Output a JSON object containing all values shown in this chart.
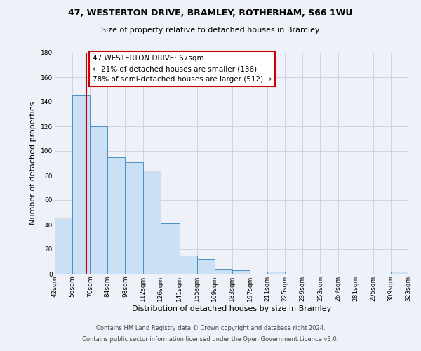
{
  "title": "47, WESTERTON DRIVE, BRAMLEY, ROTHERHAM, S66 1WU",
  "subtitle": "Size of property relative to detached houses in Bramley",
  "xlabel": "Distribution of detached houses by size in Bramley",
  "ylabel": "Number of detached properties",
  "bin_edges": [
    42,
    56,
    70,
    84,
    98,
    112,
    126,
    141,
    155,
    169,
    183,
    197,
    211,
    225,
    239,
    253,
    267,
    281,
    295,
    309,
    323
  ],
  "bin_labels": [
    "42sqm",
    "56sqm",
    "70sqm",
    "84sqm",
    "98sqm",
    "112sqm",
    "126sqm",
    "141sqm",
    "155sqm",
    "169sqm",
    "183sqm",
    "197sqm",
    "211sqm",
    "225sqm",
    "239sqm",
    "253sqm",
    "267sqm",
    "281sqm",
    "295sqm",
    "309sqm",
    "323sqm"
  ],
  "counts": [
    46,
    145,
    120,
    95,
    91,
    84,
    41,
    15,
    12,
    4,
    3,
    0,
    2,
    0,
    0,
    0,
    0,
    0,
    0,
    2
  ],
  "bar_fill": "#cce0f5",
  "bar_edge": "#4a90c4",
  "property_line_x": 67,
  "property_line_color": "#cc0000",
  "annotation_line1": "47 WESTERTON DRIVE: 67sqm",
  "annotation_line2": "← 21% of detached houses are smaller (136)",
  "annotation_line3": "78% of semi-detached houses are larger (512) →",
  "annotation_box_color": "#ffffff",
  "annotation_box_edge": "#cc0000",
  "ylim": [
    0,
    180
  ],
  "yticks": [
    0,
    20,
    40,
    60,
    80,
    100,
    120,
    140,
    160,
    180
  ],
  "footnote1": "Contains HM Land Registry data © Crown copyright and database right 2024.",
  "footnote2": "Contains public sector information licensed under the Open Government Licence v3.0.",
  "bg_color": "#eef2f8",
  "plot_bg_color": "#eef2f8"
}
